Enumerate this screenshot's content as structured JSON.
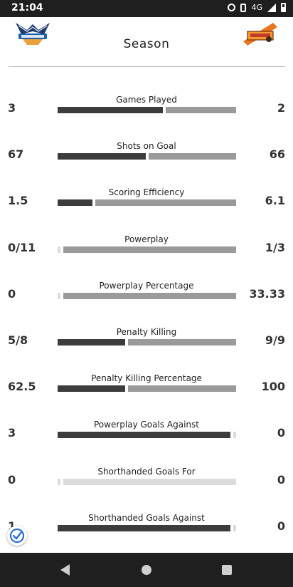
{
  "status_bar": {
    "time": "21:04",
    "network": "4G"
  },
  "header": {
    "title": "Season",
    "home_logo": "team-logo-wings",
    "away_logo": "team-logo-asiago"
  },
  "stats": [
    {
      "label": "Games Played",
      "left": "3",
      "right": "2",
      "left_share": 0.6
    },
    {
      "label": "Shots on Goal",
      "left": "67",
      "right": "66",
      "left_share": 0.503
    },
    {
      "label": "Scoring Efficiency",
      "left": "1.5",
      "right": "6.1",
      "left_share": 0.2
    },
    {
      "label": "Powerplay",
      "left": "0/11",
      "right": "1/3",
      "left_share": 0.0
    },
    {
      "label": "Powerplay Percentage",
      "left": "0",
      "right": "33.33",
      "left_share": 0.0
    },
    {
      "label": "Penalty Killing",
      "left": "5/8",
      "right": "9/9",
      "left_share": 0.385
    },
    {
      "label": "Penalty Killing Percentage",
      "left": "62.5",
      "right": "100",
      "left_share": 0.385
    },
    {
      "label": "Powerplay Goals Against",
      "left": "3",
      "right": "0",
      "left_share": 1.0
    },
    {
      "label": "Shorthanded Goals For",
      "left": "0",
      "right": "0",
      "left_share": 0.0
    },
    {
      "label": "Shorthanded Goals Against",
      "left": "1",
      "right": "0",
      "left_share": 1.0
    }
  ],
  "colors": {
    "left_bar": "#3c3c3c",
    "right_bar": "#9a9a9a",
    "empty_bar": "#dcdcdc"
  }
}
